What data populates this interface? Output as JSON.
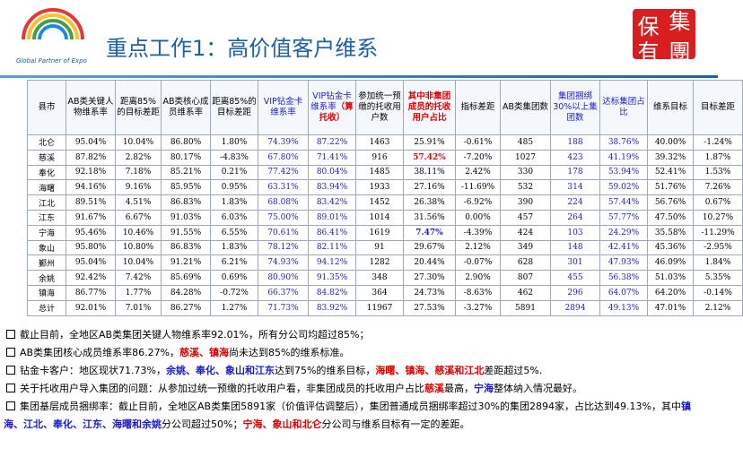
{
  "logo": {
    "caption": "Global Partner of Expo"
  },
  "stamp": [
    "保",
    "集",
    "有",
    "團"
  ],
  "title": "重点工作1：高价值客户维系",
  "table": {
    "column_colors": [
      "#000",
      "#000",
      "#000",
      "#000",
      "#000",
      "#1a1acc",
      "#1a1acc",
      "#000",
      "#000",
      "#000",
      "#000",
      "#1a1acc",
      "#1a1acc",
      "#000",
      "#000"
    ],
    "header": [
      [
        {
          "text": "县市"
        }
      ],
      [
        {
          "text": "AB类关键人物维系率"
        }
      ],
      [
        {
          "text": "距离85%的目标差距"
        }
      ],
      [
        {
          "text": "AB类核心成员维系率"
        }
      ],
      [
        {
          "text": "距离85%的目标差距"
        }
      ],
      [
        {
          "text": "VIP钻金卡维系率",
          "color": "#1a1acc"
        }
      ],
      [
        {
          "text": "VIP钻金卡维系率",
          "color": "#1a1acc"
        },
        {
          "text": "（算托收）",
          "color": "#e00000",
          "bold": true
        }
      ],
      [
        {
          "text": "参加统一预缴的托收用户数"
        }
      ],
      [
        {
          "text": "其中非集团成员的托收用户占比",
          "color": "#e00000",
          "bold": true
        }
      ],
      [
        {
          "text": "指标差距"
        }
      ],
      [
        {
          "text": "AB类集团数"
        }
      ],
      [
        {
          "text": "集团捆绑30%以上集团数",
          "color": "#1a1acc"
        }
      ],
      [
        {
          "text": "达标集团占比",
          "color": "#1a1acc"
        }
      ],
      [
        {
          "text": "维系目标"
        }
      ],
      [
        {
          "text": "目标差距"
        }
      ]
    ],
    "rows": [
      [
        "北仑",
        "95.04%",
        "10.04%",
        "86.80%",
        "1.80%",
        "74.39%",
        "87.22%",
        "1463",
        "25.91%",
        "-0.61%",
        "485",
        "188",
        "38.76%",
        "40.00%",
        "-1.24%"
      ],
      [
        "慈溪",
        "87.82%",
        "2.82%",
        "80.17%",
        "-4.83%",
        "67.80%",
        "71.41%",
        "916",
        {
          "text": "57.42%",
          "color": "#e00000",
          "bold": true
        },
        "-7.20%",
        "1027",
        "423",
        "41.19%",
        "39.32%",
        "1.87%"
      ],
      [
        "奉化",
        "92.18%",
        "7.18%",
        "85.21%",
        "0.21%",
        "77.42%",
        "80.04%",
        "1485",
        "38.11%",
        "2.42%",
        "330",
        "178",
        "53.94%",
        "52.41%",
        "1.53%"
      ],
      [
        "海曙",
        "94.16%",
        "9.16%",
        "85.95%",
        "0.95%",
        "63.31%",
        "83.94%",
        "1933",
        "27.16%",
        "-11.69%",
        "532",
        "314",
        "59.02%",
        "51.76%",
        "7.26%"
      ],
      [
        "江北",
        "89.51%",
        "4.51%",
        "86.83%",
        "1.83%",
        "68.08%",
        "83.42%",
        "1452",
        "26.38%",
        "-6.92%",
        "390",
        "224",
        "57.44%",
        "56.76%",
        "0.67%"
      ],
      [
        "江东",
        "91.67%",
        "6.67%",
        "91.03%",
        "6.03%",
        "75.00%",
        "89.01%",
        "1014",
        "31.56%",
        "0.00%",
        "457",
        "264",
        "57.77%",
        "47.50%",
        "10.27%"
      ],
      [
        "宁海",
        "95.46%",
        "10.46%",
        "91.55%",
        "6.55%",
        "70.61%",
        "86.41%",
        "1619",
        {
          "text": "7.47%",
          "color": "#1a1acc",
          "bold": true
        },
        "-4.39%",
        "424",
        "103",
        "24.29%",
        "35.58%",
        "-11.29%"
      ],
      [
        "象山",
        "95.80%",
        "10.80%",
        "86.83%",
        "1.83%",
        "78.12%",
        "82.11%",
        "91",
        "29.67%",
        "2.12%",
        "349",
        "148",
        "42.41%",
        "45.36%",
        "-2.95%"
      ],
      [
        "鄞州",
        "95.04%",
        "10.04%",
        "91.21%",
        "6.21%",
        "74.93%",
        "94.12%",
        "1282",
        "20.44%",
        "-0.07%",
        "628",
        "301",
        "47.93%",
        "46.09%",
        "1.84%"
      ],
      [
        "余姚",
        "92.42%",
        "7.42%",
        "85.69%",
        "0.69%",
        "80.90%",
        "91.35%",
        "348",
        "27.30%",
        "2.90%",
        "807",
        "455",
        "56.38%",
        "51.03%",
        "5.35%"
      ],
      [
        "镇海",
        "86.77%",
        "1.77%",
        "84.28%",
        "-0.72%",
        "66.37%",
        "84.82%",
        "364",
        "24.73%",
        "-8.63%",
        "462",
        "296",
        "64.07%",
        "64.20%",
        "-0.14%"
      ],
      [
        "总计",
        "92.01%",
        "7.01%",
        "86.27%",
        "1.27%",
        "71.73%",
        "83.92%",
        "11967",
        "27.53%",
        "-3.27%",
        "5891",
        "2894",
        "49.13%",
        "47.01%",
        "2.12%"
      ]
    ]
  },
  "bullets": [
    [
      {
        "text": "截止目前，全地区AB类集团关键人物维系率92.01%，所有分公司均超过85%；"
      }
    ],
    [
      {
        "text": "AB类集团核心成员维系率86.27%，"
      },
      {
        "text": "慈溪、镇海",
        "color": "#e00000",
        "bold": true
      },
      {
        "text": "尚未达到85%的维系标准。"
      }
    ],
    [
      {
        "text": "钻金卡客户：地区现状71.73%，"
      },
      {
        "text": "余姚、奉化、象山和江东",
        "color": "#1a1acc",
        "bold": true
      },
      {
        "text": "达到75%的维系目标，"
      },
      {
        "text": "海曙、镇海、慈溪和江北",
        "color": "#e00000",
        "bold": true
      },
      {
        "text": "差距超过5%."
      }
    ],
    [
      {
        "text": "关于托收用户导入集团的问题：从参加过统一预缴的托收用户看，非集团成员的托收用户占比"
      },
      {
        "text": "慈溪",
        "color": "#e00000",
        "bold": true
      },
      {
        "text": "最高，"
      },
      {
        "text": "宁海",
        "color": "#1a1acc",
        "bold": true
      },
      {
        "text": "整体纳入情况最好。"
      }
    ],
    [
      {
        "text": "集团基层成员捆绑率：截止目前，全地区AB类集团5891家（价值评估调整后），集团普通成员捆绑率超过30%的集团2894家，占比达到49.13%，其中"
      },
      {
        "text": "镇海、江北、奉化、江东、海曙和余姚",
        "color": "#1a1acc",
        "bold": true
      },
      {
        "text": "分公司超过50%；"
      },
      {
        "text": "宁海、象山和北仑",
        "color": "#e00000",
        "bold": true
      },
      {
        "text": "分公司与维系目标有一定的差距。"
      }
    ]
  ]
}
